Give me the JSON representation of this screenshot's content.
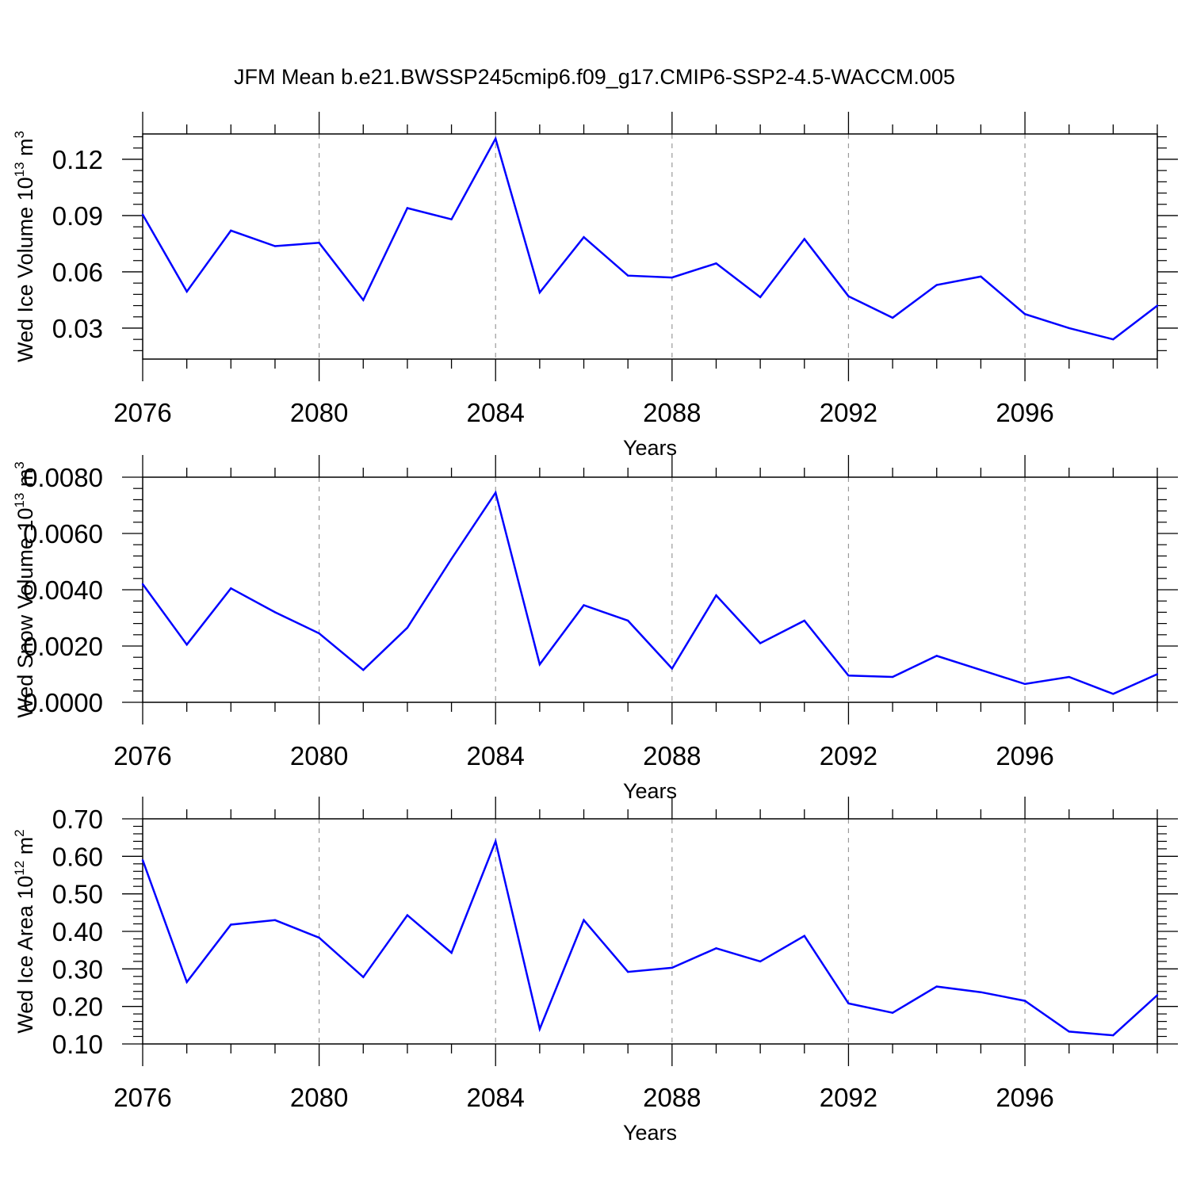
{
  "title": "JFM Mean b.e21.BWSSP245cmip6.f09_g17.CMIP6-SSP2-4.5-WACCM.005",
  "line_color": "#0000ff",
  "chart_data": [
    {
      "type": "line",
      "xlabel": "Years",
      "ylabel": {
        "base": "Wed Ice Volume 10",
        "exp": "13",
        "unit": " m",
        "unit_exp": "3"
      },
      "xlim": [
        2076,
        2099
      ],
      "ylim": [
        0.0135,
        0.1335
      ],
      "xticks": [
        2076,
        2080,
        2084,
        2088,
        2092,
        2096
      ],
      "yticks": [
        0.03,
        0.06,
        0.09,
        0.12
      ],
      "ytick_labels": [
        "0.03",
        "0.06",
        "0.09",
        "0.12"
      ],
      "yminor_step": 0.006,
      "grid": "dashed-vertical-at-major-x",
      "series": [
        {
          "name": "Wed Ice Volume",
          "x": [
            2076,
            2077,
            2078,
            2079,
            2080,
            2081,
            2082,
            2083,
            2084,
            2085,
            2086,
            2087,
            2088,
            2089,
            2090,
            2091,
            2092,
            2093,
            2094,
            2095,
            2096,
            2097,
            2098,
            2099
          ],
          "values": [
            0.0905,
            0.0495,
            0.082,
            0.0737,
            0.0755,
            0.045,
            0.094,
            0.088,
            0.131,
            0.049,
            0.0785,
            0.058,
            0.057,
            0.0645,
            0.0465,
            0.0775,
            0.047,
            0.0355,
            0.053,
            0.0575,
            0.0375,
            0.03,
            0.024,
            0.042
          ]
        }
      ]
    },
    {
      "type": "line",
      "xlabel": "Years",
      "ylabel": {
        "base": "Wed Snow Volume 10",
        "exp": "13",
        "unit": " m",
        "unit_exp": "3"
      },
      "xlim": [
        2076,
        2099
      ],
      "ylim": [
        0,
        0.008
      ],
      "xticks": [
        2076,
        2080,
        2084,
        2088,
        2092,
        2096
      ],
      "yticks": [
        0,
        0.002,
        0.004,
        0.006,
        0.008
      ],
      "ytick_labels": [
        "0.0000",
        "0.0020",
        "0.0040",
        "0.0060",
        "0.0080"
      ],
      "yminor_step": 0.0004,
      "grid": "dashed-vertical-at-major-x",
      "series": [
        {
          "name": "Wed Snow Volume",
          "x": [
            2076,
            2077,
            2078,
            2079,
            2080,
            2081,
            2082,
            2083,
            2084,
            2085,
            2086,
            2087,
            2088,
            2089,
            2090,
            2091,
            2092,
            2093,
            2094,
            2095,
            2096,
            2097,
            2098,
            2099
          ],
          "values": [
            0.0042,
            0.00205,
            0.00405,
            0.0032,
            0.00245,
            0.00115,
            0.00265,
            0.0051,
            0.00745,
            0.00135,
            0.00345,
            0.0029,
            0.0012,
            0.0038,
            0.0021,
            0.0029,
            0.00095,
            0.0009,
            0.00165,
            0.00115,
            0.00065,
            0.0009,
            0.0003,
            0.001
          ]
        }
      ]
    },
    {
      "type": "line",
      "xlabel": "Years",
      "ylabel": {
        "base": "Wed Ice Area 10",
        "exp": "12",
        "unit": " m",
        "unit_exp": "2"
      },
      "xlim": [
        2076,
        2099
      ],
      "ylim": [
        0.1,
        0.7
      ],
      "xticks": [
        2076,
        2080,
        2084,
        2088,
        2092,
        2096
      ],
      "yticks": [
        0.1,
        0.2,
        0.3,
        0.4,
        0.5,
        0.6,
        0.7
      ],
      "ytick_labels": [
        "0.10",
        "0.20",
        "0.30",
        "0.40",
        "0.50",
        "0.60",
        "0.70"
      ],
      "yminor_step": 0.02,
      "grid": "dashed-vertical-at-major-x",
      "series": [
        {
          "name": "Wed Ice Area",
          "x": [
            2076,
            2077,
            2078,
            2079,
            2080,
            2081,
            2082,
            2083,
            2084,
            2085,
            2086,
            2087,
            2088,
            2089,
            2090,
            2091,
            2092,
            2093,
            2094,
            2095,
            2096,
            2097,
            2098,
            2099
          ],
          "values": [
            0.59,
            0.265,
            0.418,
            0.43,
            0.383,
            0.278,
            0.443,
            0.343,
            0.64,
            0.14,
            0.43,
            0.292,
            0.303,
            0.355,
            0.32,
            0.388,
            0.208,
            0.183,
            0.253,
            0.238,
            0.215,
            0.133,
            0.123,
            0.23
          ]
        }
      ]
    }
  ]
}
